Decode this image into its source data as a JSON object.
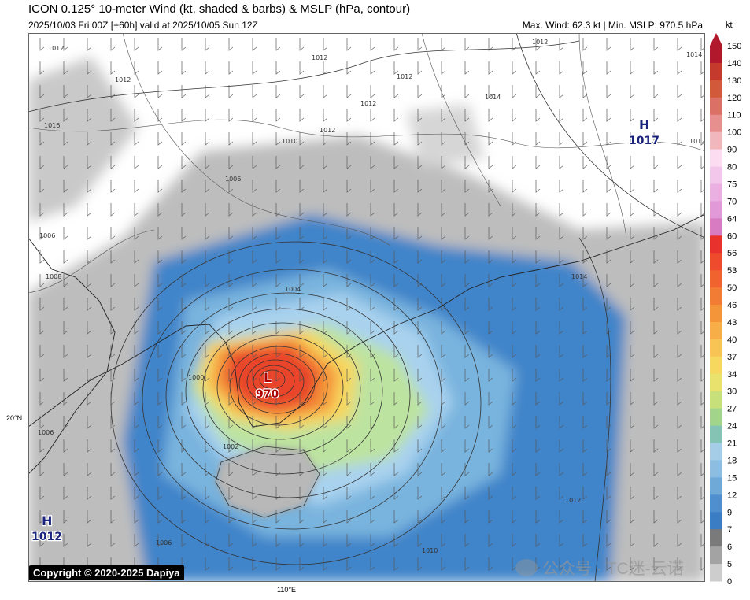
{
  "header": {
    "title": "ICON 0.125° 10-meter Wind (kt, shaded & barbs) & MSLP (hPa, contour)",
    "subtitle": "2025/10/03 Fri 00Z [+60h] valid at 2025/10/05 Sun 12Z",
    "stats": "Max. Wind: 62.3 kt | Min. MSLP: 970.5 hPa"
  },
  "colorbar": {
    "unit": "kt",
    "ticks": [
      "150",
      "140",
      "130",
      "120",
      "110",
      "100",
      "90",
      "80",
      "75",
      "70",
      "64",
      "60",
      "56",
      "53",
      "50",
      "46",
      "43",
      "40",
      "37",
      "34",
      "30",
      "27",
      "24",
      "21",
      "18",
      "15",
      "12",
      "9",
      "7",
      "6",
      "5",
      "0"
    ],
    "colors": [
      "#b2182b",
      "#c43a2d",
      "#d25a3a",
      "#db7067",
      "#e68f8e",
      "#f0b8bd",
      "#fcdcf0",
      "#f3c6ec",
      "#eab0e2",
      "#e19ad7",
      "#d97bc2",
      "#e8302c",
      "#ee4a2c",
      "#f0632e",
      "#f27c33",
      "#f5953a",
      "#f7ae46",
      "#f8c454",
      "#f6d85e",
      "#e9e36d",
      "#c8e07a",
      "#a3d48b",
      "#85c4b4",
      "#a5cde8",
      "#8dbde0",
      "#6ea9d8",
      "#4f8fcf",
      "#3b7dc5",
      "#7a7a7a",
      "#a3a3a3",
      "#cdcdcd",
      "#e8e8e8"
    ]
  },
  "map": {
    "low": {
      "symbol": "L",
      "value": "970"
    },
    "highs": [
      {
        "symbol": "H",
        "value": "1017"
      },
      {
        "symbol": "H",
        "value": "1012"
      }
    ],
    "isobar_labels": [
      "1012",
      "1012",
      "1012",
      "1012",
      "1012",
      "1014",
      "1016",
      "1012",
      "1010",
      "1014",
      "1012",
      "1014",
      "1008",
      "1006",
      "1004",
      "1006",
      "1000",
      "1002",
      "1006",
      "1012",
      "1010",
      "1012",
      "1006"
    ],
    "lat_label": "20°N",
    "lon_label": "110°E"
  },
  "footer": {
    "copyright": "Copyright © 2020-2025 Dapiya",
    "watermark": "公众号 · TC迷-云诺"
  }
}
